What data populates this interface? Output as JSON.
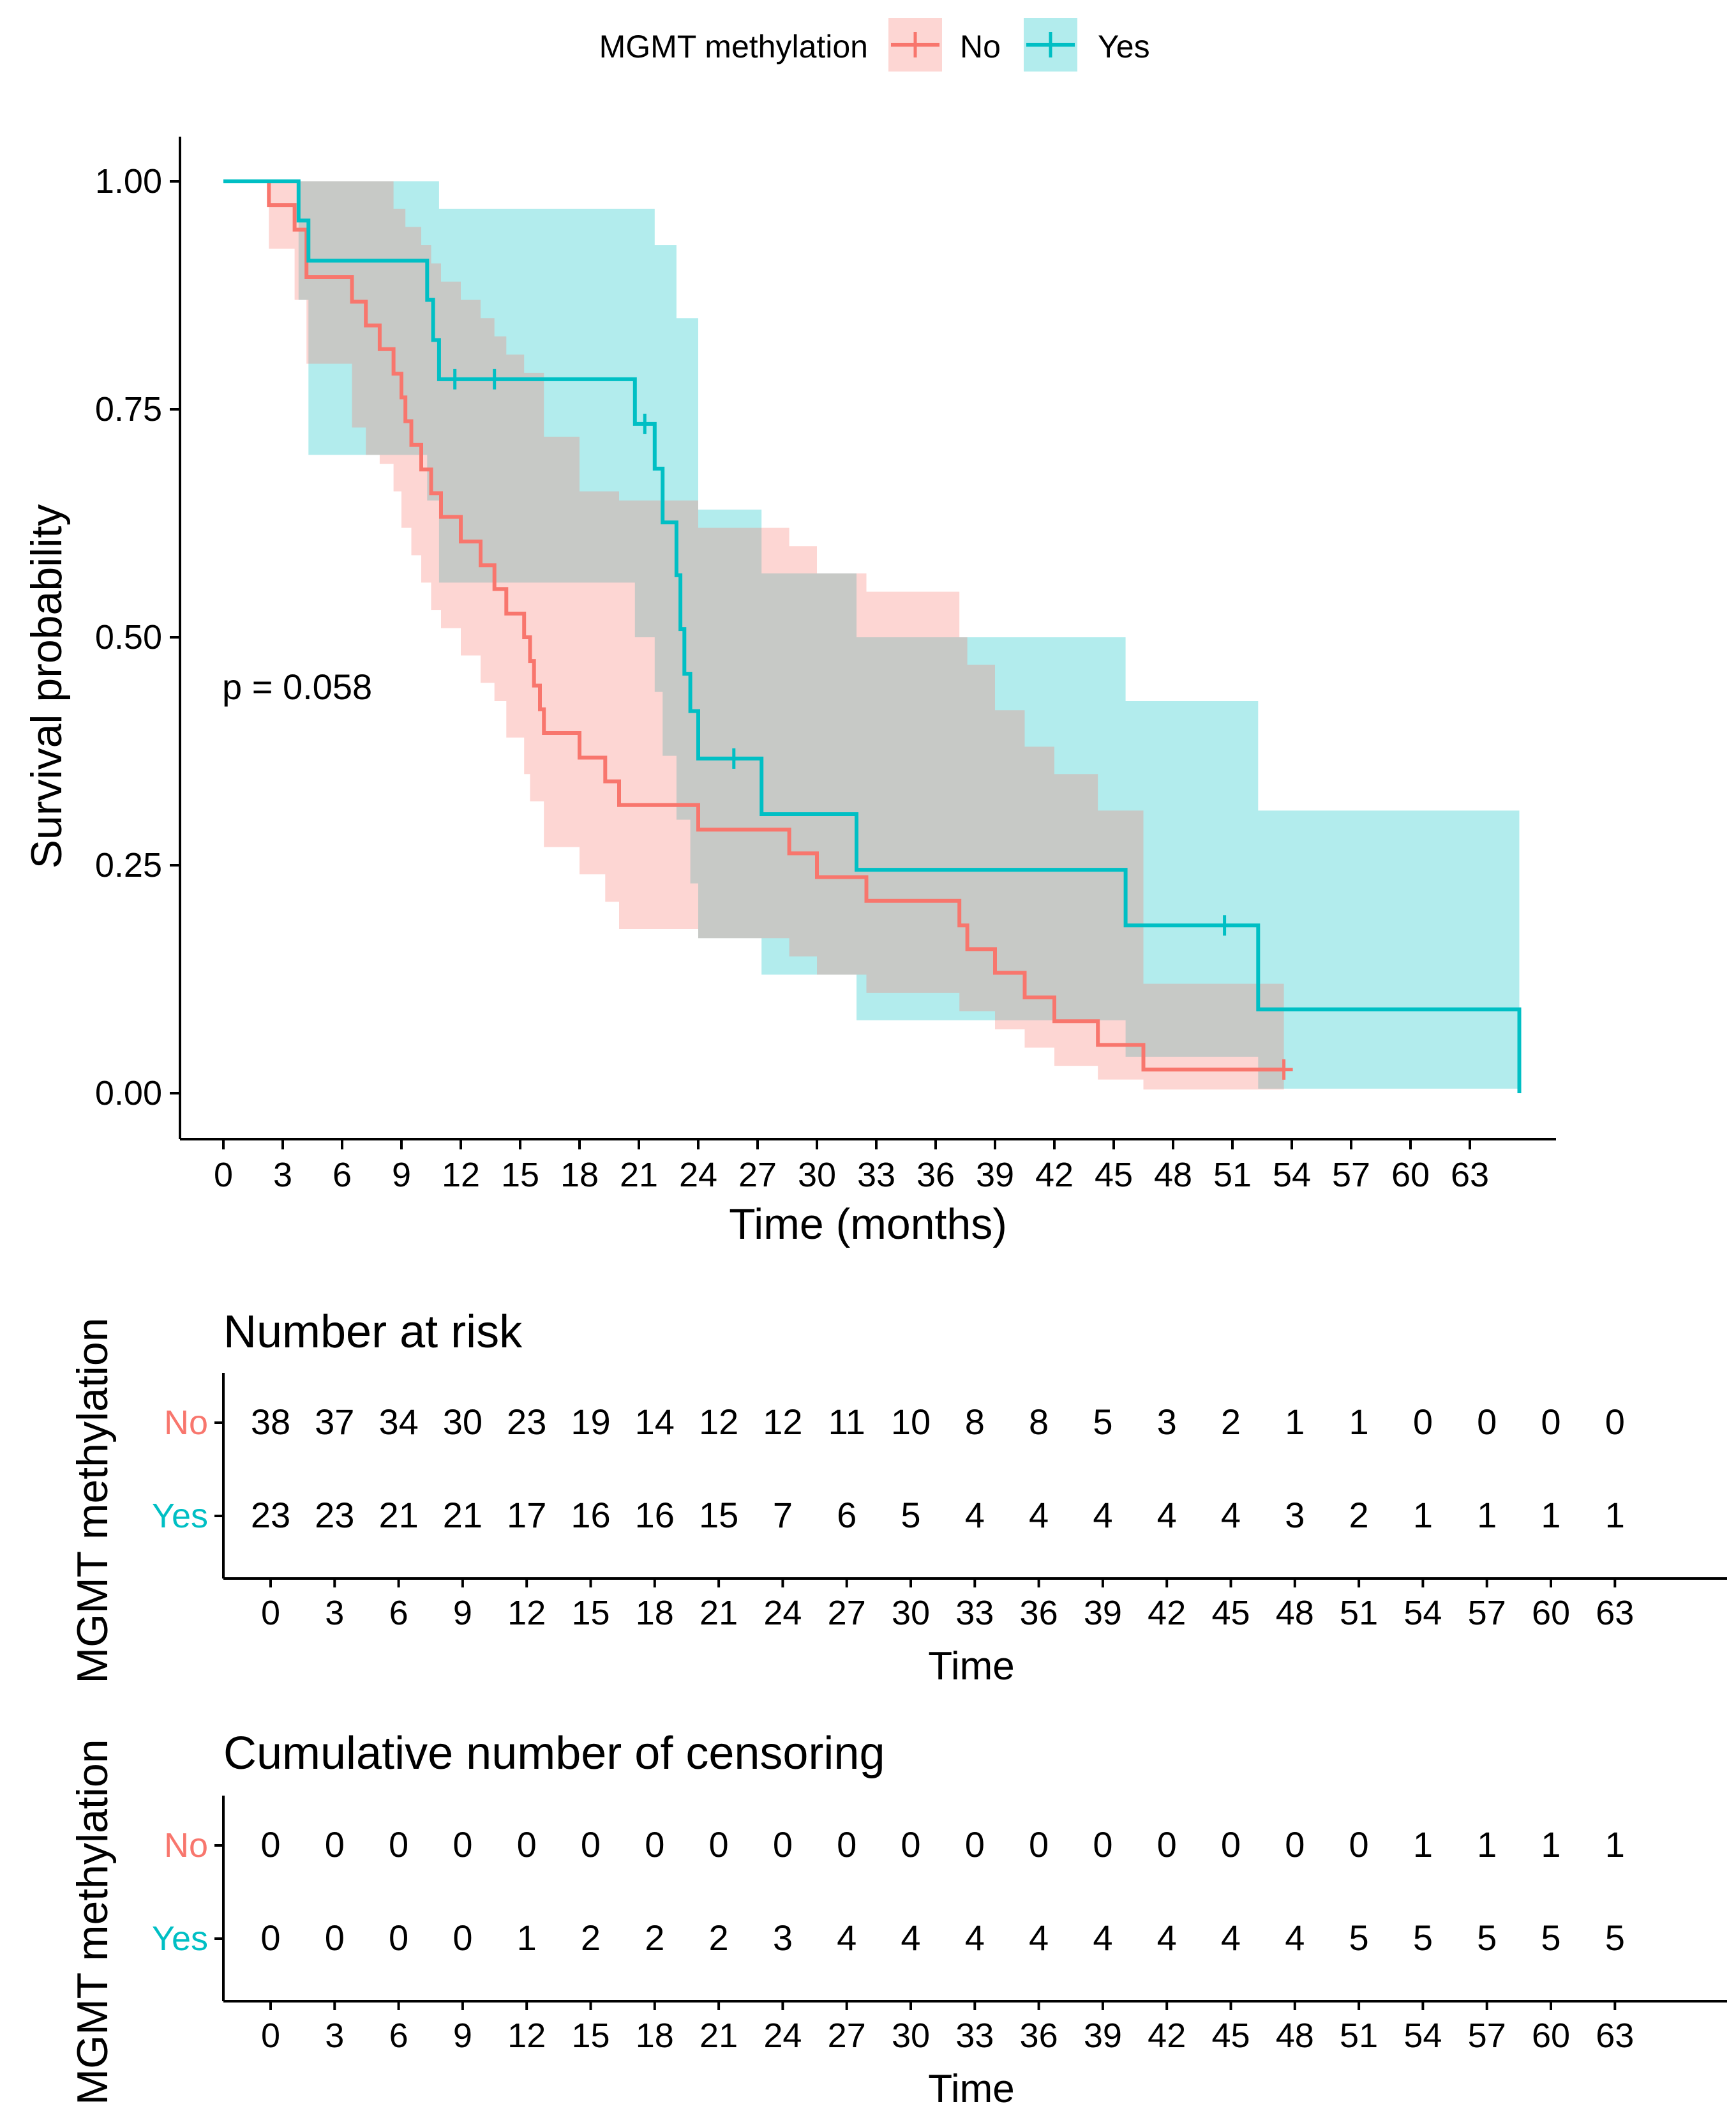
{
  "colors": {
    "no": "#F8766D",
    "yes": "#00BFC4",
    "axis": "#000000"
  },
  "legend": {
    "title": "MGMT methylation",
    "no_label": "No",
    "yes_label": "Yes"
  },
  "chart_data": {
    "type": "line",
    "subtype": "kaplan-meier",
    "xlabel": "Time (months)",
    "ylabel": "Survival probability",
    "xlim": [
      0,
      66
    ],
    "ylim": [
      0,
      1.05
    ],
    "xticks": [
      0,
      3,
      6,
      9,
      12,
      15,
      18,
      21,
      24,
      27,
      30,
      33,
      36,
      39,
      42,
      45,
      48,
      51,
      54,
      57,
      60,
      63
    ],
    "xtick_labels": [
      "0",
      "3",
      "6",
      "9",
      "12",
      "15",
      "18",
      "21",
      "24",
      "27",
      "30",
      "33",
      "36",
      "39",
      "42",
      "45",
      "48",
      "51",
      "54",
      "57",
      "60",
      "63"
    ],
    "yticks": [
      0,
      0.25,
      0.5,
      0.75,
      1.0
    ],
    "ytick_labels": [
      "0.00",
      "0.25",
      "0.50",
      "0.75",
      "1.00"
    ],
    "pvalue_text": "p = 0.058",
    "series": [
      {
        "name": "No",
        "color": "#F8766D",
        "steps": [
          [
            0,
            1.0
          ],
          [
            2.3,
            0.974
          ],
          [
            3.6,
            0.947
          ],
          [
            4.2,
            0.895
          ],
          [
            6.5,
            0.868
          ],
          [
            7.2,
            0.842
          ],
          [
            7.9,
            0.816
          ],
          [
            8.6,
            0.789
          ],
          [
            9.0,
            0.763
          ],
          [
            9.2,
            0.737
          ],
          [
            9.5,
            0.711
          ],
          [
            10.0,
            0.684
          ],
          [
            10.5,
            0.658
          ],
          [
            11.0,
            0.632
          ],
          [
            12.0,
            0.605
          ],
          [
            13.0,
            0.579
          ],
          [
            13.7,
            0.553
          ],
          [
            14.3,
            0.526
          ],
          [
            15.2,
            0.5
          ],
          [
            15.5,
            0.474
          ],
          [
            15.7,
            0.447
          ],
          [
            16.0,
            0.421
          ],
          [
            16.2,
            0.395
          ],
          [
            18.0,
            0.368
          ],
          [
            19.3,
            0.342
          ],
          [
            20.0,
            0.316
          ],
          [
            24.0,
            0.289
          ],
          [
            28.6,
            0.263
          ],
          [
            30.0,
            0.237
          ],
          [
            32.5,
            0.211
          ],
          [
            37.2,
            0.184
          ],
          [
            37.6,
            0.158
          ],
          [
            39.0,
            0.132
          ],
          [
            40.5,
            0.105
          ],
          [
            42.0,
            0.079
          ],
          [
            44.2,
            0.053
          ],
          [
            46.5,
            0.026
          ],
          [
            53.6,
            0.026
          ]
        ],
        "ci_upper": [
          [
            0,
            1.0
          ],
          [
            2.3,
            1.0
          ],
          [
            3.6,
            1.0
          ],
          [
            4.2,
            1.0
          ],
          [
            6.5,
            1.0
          ],
          [
            7.9,
            1.0
          ],
          [
            8.6,
            0.97
          ],
          [
            9.2,
            0.95
          ],
          [
            10.0,
            0.93
          ],
          [
            10.5,
            0.91
          ],
          [
            11.0,
            0.89
          ],
          [
            12.0,
            0.87
          ],
          [
            13.0,
            0.85
          ],
          [
            13.7,
            0.83
          ],
          [
            14.3,
            0.81
          ],
          [
            15.2,
            0.79
          ],
          [
            16.2,
            0.72
          ],
          [
            18.0,
            0.66
          ],
          [
            20.0,
            0.65
          ],
          [
            24.0,
            0.62
          ],
          [
            28.6,
            0.6
          ],
          [
            30.0,
            0.57
          ],
          [
            32.5,
            0.55
          ],
          [
            37.2,
            0.5
          ],
          [
            37.6,
            0.47
          ],
          [
            39.0,
            0.42
          ],
          [
            40.5,
            0.38
          ],
          [
            42.0,
            0.35
          ],
          [
            44.2,
            0.31
          ],
          [
            46.5,
            0.12
          ],
          [
            53.6,
            0.12
          ]
        ],
        "ci_lower": [
          [
            0,
            1.0
          ],
          [
            2.3,
            0.926
          ],
          [
            3.6,
            0.87
          ],
          [
            4.2,
            0.8
          ],
          [
            6.5,
            0.73
          ],
          [
            7.2,
            0.7
          ],
          [
            7.9,
            0.69
          ],
          [
            8.6,
            0.66
          ],
          [
            9.0,
            0.62
          ],
          [
            9.5,
            0.59
          ],
          [
            10.0,
            0.56
          ],
          [
            10.5,
            0.53
          ],
          [
            11.0,
            0.51
          ],
          [
            12.0,
            0.48
          ],
          [
            13.0,
            0.45
          ],
          [
            13.7,
            0.43
          ],
          [
            14.3,
            0.39
          ],
          [
            15.2,
            0.35
          ],
          [
            15.5,
            0.32
          ],
          [
            16.2,
            0.27
          ],
          [
            18.0,
            0.24
          ],
          [
            19.3,
            0.21
          ],
          [
            20.0,
            0.18
          ],
          [
            24.0,
            0.17
          ],
          [
            28.6,
            0.15
          ],
          [
            30.0,
            0.13
          ],
          [
            32.5,
            0.11
          ],
          [
            37.2,
            0.09
          ],
          [
            39.0,
            0.07
          ],
          [
            40.5,
            0.05
          ],
          [
            42.0,
            0.03
          ],
          [
            44.2,
            0.015
          ],
          [
            46.5,
            0.004
          ],
          [
            53.6,
            0.004
          ]
        ],
        "censor_times": [
          [
            53.6,
            0.026
          ]
        ]
      },
      {
        "name": "Yes",
        "color": "#00BFC4",
        "steps": [
          [
            0,
            1.0
          ],
          [
            3.8,
            0.957
          ],
          [
            4.3,
            0.913
          ],
          [
            10.3,
            0.87
          ],
          [
            10.6,
            0.826
          ],
          [
            10.9,
            0.783
          ],
          [
            20.8,
            0.734
          ],
          [
            21.8,
            0.685
          ],
          [
            22.2,
            0.626
          ],
          [
            22.9,
            0.568
          ],
          [
            23.1,
            0.509
          ],
          [
            23.3,
            0.46
          ],
          [
            23.6,
            0.419
          ],
          [
            24.0,
            0.367
          ],
          [
            27.2,
            0.306
          ],
          [
            32.0,
            0.245
          ],
          [
            45.6,
            0.184
          ],
          [
            52.3,
            0.092
          ],
          [
            65.5,
            0.0
          ]
        ],
        "ci_upper": [
          [
            0,
            1.0
          ],
          [
            3.8,
            1.0
          ],
          [
            10.3,
            1.0
          ],
          [
            10.9,
            0.97
          ],
          [
            21.8,
            0.93
          ],
          [
            22.9,
            0.85
          ],
          [
            24.0,
            0.64
          ],
          [
            27.2,
            0.57
          ],
          [
            32.0,
            0.5
          ],
          [
            45.6,
            0.43
          ],
          [
            52.3,
            0.31
          ],
          [
            65.5,
            0.31
          ]
        ],
        "ci_lower": [
          [
            0,
            1.0
          ],
          [
            3.8,
            0.87
          ],
          [
            4.3,
            0.7
          ],
          [
            10.3,
            0.65
          ],
          [
            10.9,
            0.56
          ],
          [
            20.8,
            0.5
          ],
          [
            21.8,
            0.44
          ],
          [
            22.2,
            0.37
          ],
          [
            22.9,
            0.3
          ],
          [
            23.6,
            0.23
          ],
          [
            24.0,
            0.17
          ],
          [
            27.2,
            0.13
          ],
          [
            32.0,
            0.08
          ],
          [
            45.6,
            0.04
          ],
          [
            52.3,
            0.005
          ],
          [
            65.5,
            0.005
          ]
        ],
        "censor_times": [
          [
            11.7,
            0.783
          ],
          [
            13.7,
            0.783
          ],
          [
            21.3,
            0.734
          ],
          [
            25.8,
            0.367
          ],
          [
            50.6,
            0.184
          ]
        ]
      }
    ]
  },
  "risk_table": {
    "title": "Number at risk",
    "ylabel": "MGMT methylation",
    "xlabel": "Time",
    "times": [
      "0",
      "3",
      "6",
      "9",
      "12",
      "15",
      "18",
      "21",
      "24",
      "27",
      "30",
      "33",
      "36",
      "39",
      "42",
      "45",
      "48",
      "51",
      "54",
      "57",
      "60",
      "63"
    ],
    "rows": [
      {
        "label": "No",
        "values": [
          "38",
          "37",
          "34",
          "30",
          "23",
          "19",
          "14",
          "12",
          "12",
          "11",
          "10",
          "8",
          "8",
          "5",
          "3",
          "2",
          "1",
          "1",
          "0",
          "0",
          "0",
          "0"
        ]
      },
      {
        "label": "Yes",
        "values": [
          "23",
          "23",
          "21",
          "21",
          "17",
          "16",
          "16",
          "15",
          "7",
          "6",
          "5",
          "4",
          "4",
          "4",
          "4",
          "4",
          "3",
          "2",
          "1",
          "1",
          "1",
          "1"
        ]
      }
    ]
  },
  "censor_table": {
    "title": "Cumulative number of censoring",
    "ylabel": "MGMT methylation",
    "xlabel": "Time",
    "times": [
      "0",
      "3",
      "6",
      "9",
      "12",
      "15",
      "18",
      "21",
      "24",
      "27",
      "30",
      "33",
      "36",
      "39",
      "42",
      "45",
      "48",
      "51",
      "54",
      "57",
      "60",
      "63"
    ],
    "rows": [
      {
        "label": "No",
        "values": [
          "0",
          "0",
          "0",
          "0",
          "0",
          "0",
          "0",
          "0",
          "0",
          "0",
          "0",
          "0",
          "0",
          "0",
          "0",
          "0",
          "0",
          "0",
          "1",
          "1",
          "1",
          "1"
        ]
      },
      {
        "label": "Yes",
        "values": [
          "0",
          "0",
          "0",
          "0",
          "1",
          "2",
          "2",
          "2",
          "3",
          "4",
          "4",
          "4",
          "4",
          "4",
          "4",
          "4",
          "4",
          "5",
          "5",
          "5",
          "5",
          "5"
        ]
      }
    ]
  }
}
